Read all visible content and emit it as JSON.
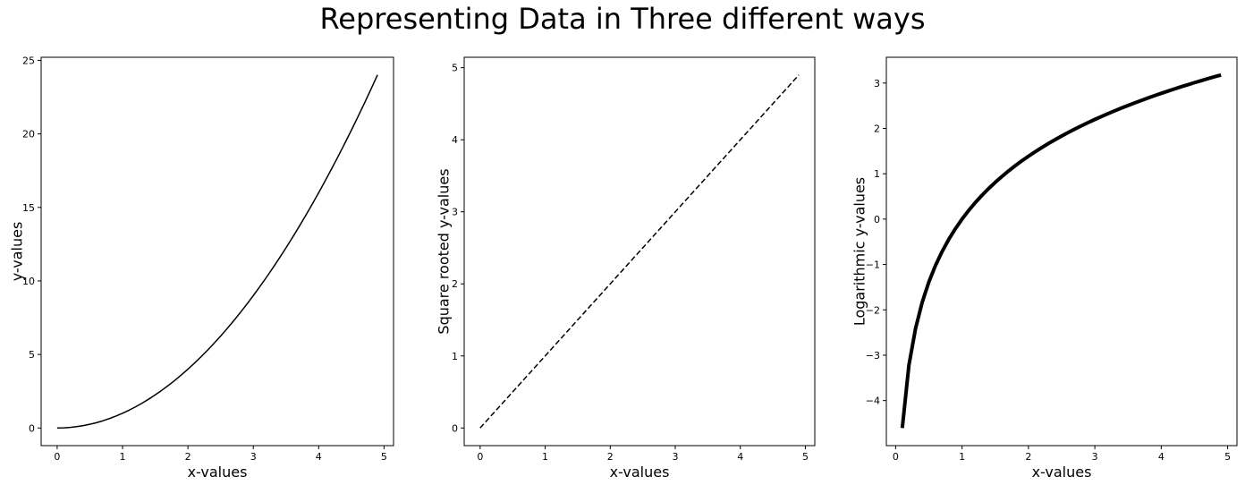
{
  "figure": {
    "title": "Representing Data in Three different ways"
  },
  "chart_data": [
    {
      "type": "line",
      "xlabel": "x-values",
      "ylabel": "y-values",
      "xlim": [
        -0.245,
        5.145
      ],
      "ylim": [
        -1.2005,
        25.2105
      ],
      "xticks": [
        0,
        1,
        2,
        3,
        4,
        5
      ],
      "yticks": [
        0,
        5,
        10,
        15,
        20,
        25
      ],
      "line_style": "solid",
      "line_color": "#000000",
      "grid": false,
      "x": [
        0,
        0.1,
        0.2,
        0.3,
        0.4,
        0.5,
        0.6,
        0.7,
        0.8,
        0.9,
        1.0,
        1.1,
        1.2,
        1.3,
        1.4,
        1.5,
        1.6,
        1.7,
        1.8,
        1.9,
        2.0,
        2.1,
        2.2,
        2.3,
        2.4,
        2.5,
        2.6,
        2.7,
        2.8,
        2.9,
        3.0,
        3.1,
        3.2,
        3.3,
        3.4,
        3.5,
        3.6,
        3.7,
        3.8,
        3.9,
        4.0,
        4.1,
        4.2,
        4.3,
        4.4,
        4.5,
        4.6,
        4.7,
        4.8,
        4.9
      ],
      "series": [
        {
          "values": [
            0,
            0.01,
            0.04,
            0.09,
            0.16,
            0.25,
            0.36,
            0.49,
            0.64,
            0.81,
            1.0,
            1.21,
            1.44,
            1.69,
            1.96,
            2.25,
            2.56,
            2.89,
            3.24,
            3.61,
            4.0,
            4.41,
            4.84,
            5.29,
            5.76,
            6.25,
            6.76,
            7.29,
            7.84,
            8.41,
            9.0,
            9.61,
            10.24,
            10.89,
            11.56,
            12.25,
            12.96,
            13.69,
            14.44,
            15.21,
            16.0,
            16.81,
            17.64,
            18.49,
            19.36,
            20.25,
            21.16,
            22.09,
            23.04,
            24.01
          ]
        }
      ]
    },
    {
      "type": "line",
      "xlabel": "x-values",
      "ylabel": "Square rooted y-values",
      "xlim": [
        -0.245,
        5.145
      ],
      "ylim": [
        -0.245,
        5.145
      ],
      "xticks": [
        0,
        1,
        2,
        3,
        4,
        5
      ],
      "yticks": [
        0,
        1,
        2,
        3,
        4,
        5
      ],
      "line_style": "dashed",
      "line_color": "#000000",
      "grid": false,
      "x": [
        0,
        0.1,
        0.2,
        0.3,
        0.4,
        0.5,
        0.6,
        0.7,
        0.8,
        0.9,
        1.0,
        1.1,
        1.2,
        1.3,
        1.4,
        1.5,
        1.6,
        1.7,
        1.8,
        1.9,
        2.0,
        2.1,
        2.2,
        2.3,
        2.4,
        2.5,
        2.6,
        2.7,
        2.8,
        2.9,
        3.0,
        3.1,
        3.2,
        3.3,
        3.4,
        3.5,
        3.6,
        3.7,
        3.8,
        3.9,
        4.0,
        4.1,
        4.2,
        4.3,
        4.4,
        4.5,
        4.6,
        4.7,
        4.8,
        4.9
      ],
      "series": [
        {
          "values": [
            0,
            0.1,
            0.2,
            0.3,
            0.4,
            0.5,
            0.6,
            0.7,
            0.8,
            0.9,
            1.0,
            1.1,
            1.2,
            1.3,
            1.4,
            1.5,
            1.6,
            1.7,
            1.8,
            1.9,
            2.0,
            2.1,
            2.2,
            2.3,
            2.4,
            2.5,
            2.6,
            2.7,
            2.8,
            2.9,
            3.0,
            3.1,
            3.2,
            3.3,
            3.4,
            3.5,
            3.6,
            3.7,
            3.8,
            3.9,
            4.0,
            4.1,
            4.2,
            4.3,
            4.4,
            4.5,
            4.6,
            4.7,
            4.8,
            4.9
          ]
        }
      ]
    },
    {
      "type": "line",
      "xlabel": "x-values",
      "ylabel": "Logarithmic y-values",
      "xlim": [
        -0.14,
        5.14
      ],
      "ylim": [
        -4.993,
        3.568
      ],
      "xticks": [
        0,
        1,
        2,
        3,
        4,
        5
      ],
      "yticks": [
        -4,
        -3,
        -2,
        -1,
        0,
        1,
        2,
        3
      ],
      "ytick_labels": [
        "−4",
        "−3",
        "−2",
        "−1",
        "0",
        "1",
        "2",
        "3"
      ],
      "line_style": "solid",
      "line_color": "#000000",
      "grid": false,
      "x": [
        0.1,
        0.2,
        0.3,
        0.4,
        0.5,
        0.6,
        0.7,
        0.8,
        0.9,
        1.0,
        1.1,
        1.2,
        1.3,
        1.4,
        1.5,
        1.6,
        1.7,
        1.8,
        1.9,
        2.0,
        2.1,
        2.2,
        2.3,
        2.4,
        2.5,
        2.6,
        2.7,
        2.8,
        2.9,
        3.0,
        3.1,
        3.2,
        3.3,
        3.4,
        3.5,
        3.6,
        3.7,
        3.8,
        3.9,
        4.0,
        4.1,
        4.2,
        4.3,
        4.4,
        4.5,
        4.6,
        4.7,
        4.8,
        4.9
      ],
      "series": [
        {
          "values": [
            -4.605,
            -3.219,
            -2.408,
            -1.833,
            -1.386,
            -1.022,
            -0.713,
            -0.446,
            -0.211,
            0.0,
            0.191,
            0.365,
            0.525,
            0.673,
            0.811,
            0.94,
            1.061,
            1.176,
            1.284,
            1.386,
            1.484,
            1.577,
            1.666,
            1.751,
            1.833,
            1.911,
            1.986,
            2.059,
            2.13,
            2.197,
            2.263,
            2.326,
            2.388,
            2.448,
            2.506,
            2.562,
            2.617,
            2.67,
            2.722,
            2.773,
            2.822,
            2.87,
            2.918,
            2.963,
            3.008,
            3.052,
            3.095,
            3.137,
            3.178
          ]
        }
      ]
    }
  ]
}
